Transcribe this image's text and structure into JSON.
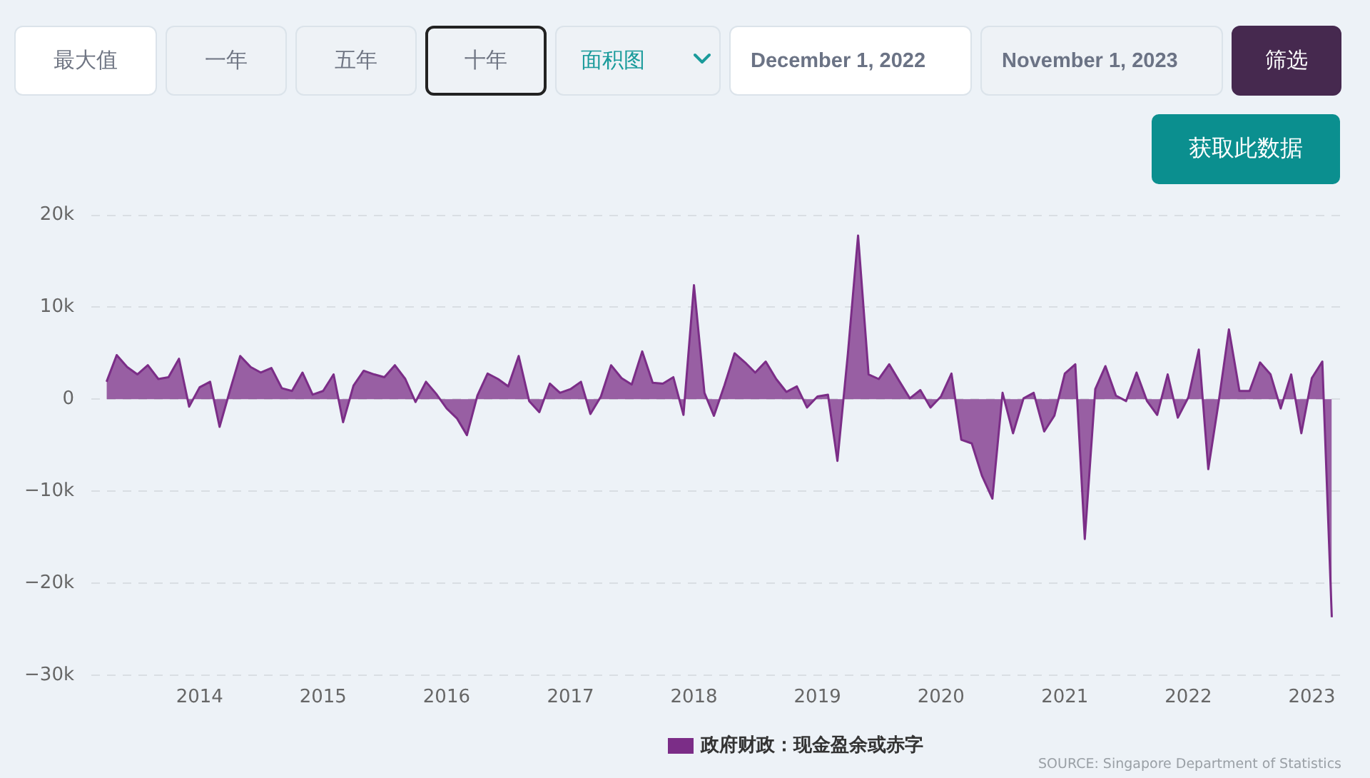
{
  "chart_data": {
    "type": "area",
    "x": [
      "2013-04",
      "2013-05",
      "2013-06",
      "2013-07",
      "2013-08",
      "2013-09",
      "2013-10",
      "2013-11",
      "2013-12",
      "2014-01",
      "2014-02",
      "2014-03",
      "2014-04",
      "2014-05",
      "2014-06",
      "2014-07",
      "2014-08",
      "2014-09",
      "2014-10",
      "2014-11",
      "2014-12",
      "2015-01",
      "2015-02",
      "2015-03",
      "2015-04",
      "2015-05",
      "2015-06",
      "2015-07",
      "2015-08",
      "2015-09",
      "2015-10",
      "2015-11",
      "2015-12",
      "2016-01",
      "2016-02",
      "2016-03",
      "2016-04",
      "2016-05",
      "2016-06",
      "2016-07",
      "2016-08",
      "2016-09",
      "2016-10",
      "2016-11",
      "2016-12",
      "2017-01",
      "2017-02",
      "2017-03",
      "2017-04",
      "2017-05",
      "2017-06",
      "2017-07",
      "2017-08",
      "2017-09",
      "2017-10",
      "2017-11",
      "2017-12",
      "2018-01",
      "2018-02",
      "2018-03",
      "2018-04",
      "2018-05",
      "2018-06",
      "2018-07",
      "2018-08",
      "2018-09",
      "2018-10",
      "2018-11",
      "2018-12",
      "2019-01",
      "2019-02",
      "2019-03",
      "2019-04",
      "2019-05",
      "2019-06",
      "2019-07",
      "2019-08",
      "2019-09",
      "2019-10",
      "2019-11",
      "2019-12",
      "2020-01",
      "2020-02",
      "2020-03",
      "2020-04",
      "2020-05",
      "2020-06",
      "2020-07",
      "2020-08",
      "2020-09",
      "2020-10",
      "2020-11",
      "2020-12",
      "2021-01",
      "2021-02",
      "2021-03",
      "2021-04",
      "2021-05",
      "2021-06",
      "2021-07",
      "2021-08",
      "2021-09",
      "2021-10",
      "2021-11",
      "2021-12",
      "2022-01",
      "2022-02",
      "2022-03",
      "2022-04",
      "2022-05",
      "2022-06",
      "2022-07",
      "2022-08",
      "2022-09",
      "2022-10",
      "2022-11",
      "2022-12",
      "2023-01",
      "2023-02",
      "2023-03"
    ],
    "series": [
      {
        "name": "政府财政：现金盈余或赤字",
        "color": "#7b2d87",
        "values": [
          1900,
          4800,
          3500,
          2700,
          3700,
          2200,
          2400,
          4400,
          -800,
          1300,
          1900,
          -3000,
          1000,
          4700,
          3500,
          2900,
          3400,
          1200,
          900,
          2900,
          500,
          900,
          2700,
          -2500,
          1500,
          3100,
          2700,
          2400,
          3700,
          2200,
          -300,
          1900,
          600,
          -1000,
          -2100,
          -3900,
          400,
          2800,
          2200,
          1400,
          4700,
          -200,
          -1400,
          1700,
          700,
          1100,
          1900,
          -1600,
          300,
          3700,
          2300,
          1600,
          5200,
          1800,
          1700,
          2400,
          -1700,
          12400,
          700,
          -1800,
          1500,
          5000,
          4000,
          2900,
          4100,
          2200,
          800,
          1400,
          -900,
          300,
          500,
          -6700,
          5000,
          17800,
          2700,
          2200,
          3800,
          1900,
          100,
          1000,
          -900,
          300,
          2800,
          -4400,
          -4800,
          -8300,
          -10800,
          700,
          -3700,
          100,
          700,
          -3500,
          -1800,
          2800,
          3800,
          -15200,
          1100,
          3600,
          400,
          -200,
          2900,
          -200,
          -1700,
          2700,
          -2000,
          200,
          5400,
          -7600,
          -200,
          7600,
          900,
          900,
          4000,
          2700,
          -1000,
          2700,
          -3700,
          2300,
          4100,
          -23700
        ]
      }
    ],
    "xlim": [
      "2013-02-15",
      "2023-04-07"
    ],
    "xticks": [
      "2014",
      "2015",
      "2016",
      "2017",
      "2018",
      "2019",
      "2020",
      "2021",
      "2022",
      "2023"
    ],
    "ylim": [
      -30000,
      20000
    ],
    "yticks": [
      {
        "value": 20000,
        "label": "20k"
      },
      {
        "value": 10000,
        "label": "10k"
      },
      0,
      {
        "value": -10000,
        "label": "−10k"
      },
      {
        "value": -20000,
        "label": "−20k"
      },
      {
        "value": -30000,
        "label": "−30k"
      }
    ],
    "grid": "y",
    "legend": "bottom",
    "annotations": [
      "最大值",
      "一年",
      "五年",
      "十年",
      "面积图",
      "December 1, 2022",
      "November 1, 2023",
      "筛选",
      "获取此数据",
      "SOURCE: Singapore Department of Statistics"
    ]
  }
}
